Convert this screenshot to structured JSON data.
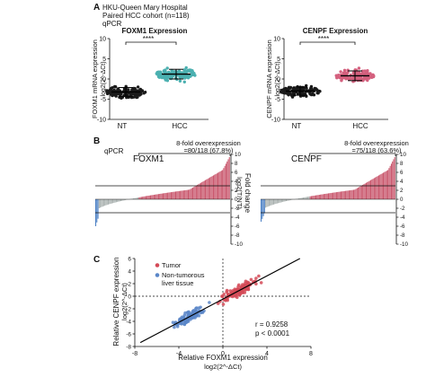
{
  "header": {
    "panel_a": "A",
    "panel_b": "B",
    "panel_c": "C",
    "cohort_lines": [
      "HKU-Queen Mary Hospital",
      "Paired HCC cohort (n=118)",
      "qPCR"
    ],
    "qpcr_b": "qPCR"
  },
  "colors": {
    "nt": "#1a1a1a",
    "foxm1_hcc": "#4bb0b0",
    "cenpf_hcc": "#d4607e",
    "overexpressed_bar": "#c8546a",
    "other_bar": "#a8b0ae",
    "under_bar": "#4a7fc4",
    "tumor_point": "#d44a57",
    "nontumor_point": "#5a86c8"
  },
  "chart_data": [
    {
      "id": "A-left",
      "type": "scatter",
      "title": "FOXM1 Expression",
      "ylabel_top": "FOXM1 mRNA expression",
      "ylabel_bottom": "log2(2^-ΔCt)",
      "categories": [
        "NT",
        "HCC"
      ],
      "significance": "****",
      "ylim": [
        -10,
        10
      ],
      "yticks": [
        "-10",
        "-5",
        "0",
        "5",
        "10"
      ],
      "series": [
        {
          "category": "NT",
          "n": 118,
          "mean": -3.2,
          "spread": 1.8
        },
        {
          "category": "HCC",
          "n": 118,
          "mean": 1.2,
          "spread": 2.0
        }
      ]
    },
    {
      "id": "A-right",
      "type": "scatter",
      "title": "CENPF Expression",
      "ylabel_top": "CENPF mRNA expression",
      "ylabel_bottom": "log2(2^-ΔCt)",
      "categories": [
        "NT",
        "HCC"
      ],
      "significance": "****",
      "ylim": [
        -10,
        10
      ],
      "yticks": [
        "-10",
        "-5",
        "0",
        "5",
        "10"
      ],
      "series": [
        {
          "category": "NT",
          "n": 118,
          "mean": -3.0,
          "spread": 1.7
        },
        {
          "category": "HCC",
          "n": 118,
          "mean": 0.8,
          "spread": 2.0
        }
      ]
    },
    {
      "id": "B-left",
      "type": "bar",
      "gene": "FOXM1",
      "annotation_line1": "8-fold overexpression",
      "annotation_line2": "=80/118 (67.8%)",
      "ylabel_top": "Fold change",
      "ylabel_bottom": "log2(T/NT)",
      "ylim": [
        -10,
        10
      ],
      "yticks": [
        "-10",
        "-8",
        "-6",
        "-4",
        "-2",
        "0",
        "2",
        "4",
        "6",
        "8",
        "10"
      ],
      "threshold": [
        3,
        -3
      ],
      "n": 118,
      "n_over": 80,
      "n_under": 3,
      "min": -6.0,
      "max": 10.0
    },
    {
      "id": "B-right",
      "type": "bar",
      "gene": "CENPF",
      "annotation_line1": "8-fold overexpression",
      "annotation_line2": "=75/118 (63.6%)",
      "ylabel_top": "Fold change",
      "ylabel_bottom": "log2(T/NT)",
      "ylim": [
        -10,
        10
      ],
      "yticks": [
        "-10",
        "-8",
        "-6",
        "-4",
        "-2",
        "0",
        "2",
        "4",
        "6",
        "8",
        "10"
      ],
      "threshold": [
        3,
        -3
      ],
      "n": 118,
      "n_over": 75,
      "n_under": 4,
      "min": -5.0,
      "max": 10.0
    },
    {
      "id": "C",
      "type": "scatter",
      "xlabel_top": "Relative FOXM1 expression",
      "xlabel_bottom": "log2(2^-ΔCt)",
      "ylabel_top": "Relative CENPF expression",
      "ylabel_bottom": "log2(2^-ΔCt)",
      "xlim": [
        -8,
        8
      ],
      "ylim": [
        -8,
        6
      ],
      "xticks": [
        "-8",
        "-4",
        "0",
        "4",
        "8"
      ],
      "yticks": [
        "-8",
        "-6",
        "-4",
        "-2",
        "0",
        "2",
        "4",
        "6"
      ],
      "legend": [
        "Tumor",
        "Non-tumorous",
        "liver tissue"
      ],
      "legend_position": "top-left",
      "stat_r": "r = 0.9258",
      "stat_p": "p < 0.0001",
      "fit_slope": 0.93,
      "fit_intercept": -0.4,
      "series": [
        {
          "name": "Tumor",
          "n": 118,
          "mean_x": 1.5,
          "spread_x": 2.2
        },
        {
          "name": "Non-tumorous liver tissue",
          "n": 118,
          "mean_x": -3.0,
          "spread_x": 1.8
        }
      ]
    }
  ]
}
